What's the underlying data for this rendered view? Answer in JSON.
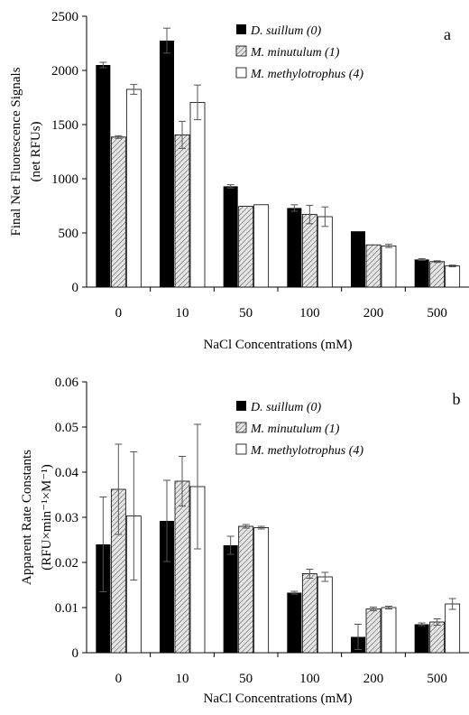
{
  "chart_data": [
    {
      "type": "bar",
      "panel_letter": "a",
      "categories": [
        "0",
        "10",
        "50",
        "100",
        "200",
        "500"
      ],
      "xlabel": "NaCl Concentrations (mM)",
      "ylabel_lines": [
        "Final Net Fluorescence Signals",
        "(net RFUs)"
      ],
      "ylim": [
        0,
        2500
      ],
      "yticks": [
        0,
        500,
        1000,
        1500,
        2000,
        2500
      ],
      "ytick_labels": [
        "0",
        "500",
        "1000",
        "1500",
        "2000",
        "2500"
      ],
      "legend_position": "top-right",
      "series": [
        {
          "name": "D. suillum (0)",
          "fill": "#000000",
          "pattern": "solid",
          "values": [
            2050,
            2275,
            930,
            730,
            515,
            255
          ],
          "errors": [
            25,
            115,
            15,
            30,
            0,
            8
          ]
        },
        {
          "name": "M. minutulum (1)",
          "fill": "#c8c8c8",
          "pattern": "hatch",
          "values": [
            1385,
            1405,
            745,
            670,
            390,
            235
          ],
          "errors": [
            12,
            125,
            0,
            85,
            0,
            8
          ]
        },
        {
          "name": "M. methylotrophus (4)",
          "fill": "#ffffff",
          "pattern": "outline",
          "values": [
            1825,
            1705,
            760,
            650,
            380,
            195
          ],
          "errors": [
            45,
            160,
            0,
            90,
            15,
            8
          ]
        }
      ]
    },
    {
      "type": "bar",
      "panel_letter": "b",
      "categories": [
        "0",
        "10",
        "50",
        "100",
        "200",
        "500"
      ],
      "xlabel": "NaCl Concentrations (mM)",
      "ylabel_lines": [
        "Apparent Rate Constants",
        "(RFU×min⁻¹×M⁻¹)"
      ],
      "ylim": [
        0,
        0.06
      ],
      "yticks": [
        0,
        0.01,
        0.02,
        0.03,
        0.04,
        0.05,
        0.06
      ],
      "ytick_labels": [
        "0",
        "0.01",
        "0.02",
        "0.03",
        "0.04",
        "0.05",
        "0.06"
      ],
      "legend_position": "top-right",
      "series": [
        {
          "name": "D. suillum (0)",
          "fill": "#000000",
          "pattern": "solid",
          "values": [
            0.024,
            0.0292,
            0.0238,
            0.0133,
            0.0035,
            0.0063
          ],
          "errors": [
            0.0105,
            0.009,
            0.002,
            0.0003,
            0.0028,
            0.0003
          ]
        },
        {
          "name": "M. minutulum (1)",
          "fill": "#c8c8c8",
          "pattern": "hatch",
          "values": [
            0.0362,
            0.038,
            0.028,
            0.0175,
            0.0097,
            0.0068
          ],
          "errors": [
            0.01,
            0.0055,
            0.0004,
            0.001,
            0.0004,
            0.0007
          ]
        },
        {
          "name": "M. methylotrophus (4)",
          "fill": "#ffffff",
          "pattern": "outline",
          "values": [
            0.0303,
            0.0368,
            0.0277,
            0.0168,
            0.01,
            0.0108
          ],
          "errors": [
            0.0142,
            0.0138,
            0.0003,
            0.001,
            0.0003,
            0.0012
          ]
        }
      ]
    }
  ]
}
